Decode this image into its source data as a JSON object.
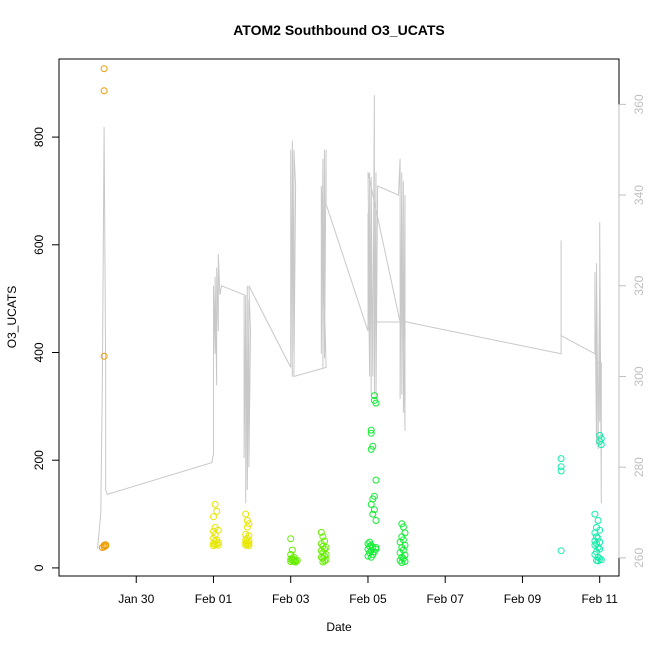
{
  "chart_data": {
    "type": "scatter",
    "title": "ATOM2 Southbound O3_UCATS",
    "xlabel": "Date",
    "ylabel": "O3_UCATS",
    "x_axis": {
      "type": "date",
      "range": [
        "2017-01-28",
        "2017-02-11 12:00"
      ],
      "ticks": [
        {
          "value": "2017-01-30",
          "label": "Jan 30"
        },
        {
          "value": "2017-02-01",
          "label": "Feb 01"
        },
        {
          "value": "2017-02-03",
          "label": "Feb 03"
        },
        {
          "value": "2017-02-05",
          "label": "Feb 05"
        },
        {
          "value": "2017-02-07",
          "label": "Feb 07"
        },
        {
          "value": "2017-02-09",
          "label": "Feb 09"
        },
        {
          "value": "2017-02-11",
          "label": "Feb 11"
        }
      ]
    },
    "y_axis_left": {
      "range": [
        -15,
        945
      ],
      "ticks": [
        0,
        200,
        400,
        600,
        800
      ]
    },
    "y_axis_right": {
      "range": [
        256,
        370
      ],
      "ticks": [
        260,
        280,
        300,
        320,
        340,
        360
      ],
      "color": "#bfbfbf"
    },
    "grid": false,
    "series": [
      {
        "color": "#ee9a00",
        "points": [
          [
            "2017-01-29 04:00",
            927
          ],
          [
            "2017-01-29 04:00",
            886
          ],
          [
            "2017-01-29 04:00",
            393
          ],
          [
            "2017-01-29 04:00",
            42
          ],
          [
            "2017-01-29 04:00",
            39
          ],
          [
            "2017-01-29 05:00",
            41
          ],
          [
            "2017-01-29 03:00",
            38
          ],
          [
            "2017-01-29 05:00",
            43
          ]
        ]
      },
      {
        "color": "#e6e600",
        "points": [
          [
            "2017-02-01 01:00",
            118
          ],
          [
            "2017-02-01 02:00",
            105
          ],
          [
            "2017-02-01 00:00",
            95
          ],
          [
            "2017-02-01 01:00",
            75
          ],
          [
            "2017-02-01 00:00",
            68
          ],
          [
            "2017-02-01 03:00",
            70
          ],
          [
            "2017-02-01 01:00",
            62
          ],
          [
            "2017-02-01 00:00",
            55
          ],
          [
            "2017-02-01 02:00",
            52
          ],
          [
            "2017-02-01 01:00",
            49
          ],
          [
            "2017-02-01 03:00",
            47
          ],
          [
            "2017-02-01 00:00",
            45
          ],
          [
            "2017-02-01 02:00",
            44
          ],
          [
            "2017-02-01 01:00",
            43
          ],
          [
            "2017-02-01 03:00",
            42
          ],
          [
            "2017-02-01 00:00",
            41
          ],
          [
            "2017-02-01 20:00",
            100
          ],
          [
            "2017-02-01 21:00",
            88
          ],
          [
            "2017-02-01 22:00",
            82
          ],
          [
            "2017-02-01 21:00",
            76
          ],
          [
            "2017-02-01 20:00",
            62
          ],
          [
            "2017-02-01 22:00",
            60
          ],
          [
            "2017-02-01 21:00",
            55
          ],
          [
            "2017-02-01 20:00",
            52
          ],
          [
            "2017-02-01 22:00",
            50
          ],
          [
            "2017-02-01 21:00",
            48
          ],
          [
            "2017-02-01 20:00",
            46
          ],
          [
            "2017-02-01 22:00",
            45
          ],
          [
            "2017-02-01 21:00",
            43
          ],
          [
            "2017-02-01 20:00",
            42
          ],
          [
            "2017-02-01 22:00",
            41
          ]
        ]
      },
      {
        "color": "#66ee00",
        "points": [
          [
            "2017-02-03 00:00",
            54
          ],
          [
            "2017-02-03 01:00",
            33
          ],
          [
            "2017-02-03 00:00",
            25
          ],
          [
            "2017-02-03 02:00",
            20
          ],
          [
            "2017-02-03 01:00",
            18
          ],
          [
            "2017-02-03 00:00",
            16
          ],
          [
            "2017-02-03 02:00",
            15
          ],
          [
            "2017-02-03 01:00",
            14
          ],
          [
            "2017-02-03 03:00",
            13
          ],
          [
            "2017-02-03 00:00",
            12
          ],
          [
            "2017-02-03 02:00",
            12
          ],
          [
            "2017-02-03 03:00",
            11
          ],
          [
            "2017-02-03 04:00",
            14
          ],
          [
            "2017-02-03 19:00",
            66
          ],
          [
            "2017-02-03 20:00",
            58
          ],
          [
            "2017-02-03 21:00",
            50
          ],
          [
            "2017-02-03 19:00",
            45
          ],
          [
            "2017-02-03 20:00",
            40
          ],
          [
            "2017-02-03 22:00",
            38
          ],
          [
            "2017-02-03 21:00",
            35
          ],
          [
            "2017-02-03 19:00",
            32
          ],
          [
            "2017-02-03 20:00",
            28
          ],
          [
            "2017-02-03 22:00",
            25
          ],
          [
            "2017-02-03 21:00",
            22
          ],
          [
            "2017-02-03 19:00",
            20
          ],
          [
            "2017-02-03 20:00",
            18
          ],
          [
            "2017-02-03 22:00",
            15
          ],
          [
            "2017-02-03 21:00",
            13
          ],
          [
            "2017-02-03 20:00",
            11
          ]
        ]
      },
      {
        "color": "#11ee33",
        "points": [
          [
            "2017-02-05 04:00",
            320
          ],
          [
            "2017-02-05 04:00",
            311
          ],
          [
            "2017-02-05 05:00",
            306
          ],
          [
            "2017-02-05 02:00",
            256
          ],
          [
            "2017-02-05 02:00",
            250
          ],
          [
            "2017-02-05 03:00",
            226
          ],
          [
            "2017-02-05 02:00",
            220
          ],
          [
            "2017-02-05 05:00",
            163
          ],
          [
            "2017-02-05 04:00",
            133
          ],
          [
            "2017-02-05 03:00",
            128
          ],
          [
            "2017-02-05 02:00",
            118
          ],
          [
            "2017-02-05 04:00",
            108
          ],
          [
            "2017-02-05 03:00",
            100
          ],
          [
            "2017-02-05 05:00",
            88
          ],
          [
            "2017-02-05 01:00",
            48
          ],
          [
            "2017-02-05 00:00",
            45
          ],
          [
            "2017-02-05 02:00",
            42
          ],
          [
            "2017-02-05 01:00",
            40
          ],
          [
            "2017-02-05 03:00",
            38
          ],
          [
            "2017-02-05 00:00",
            35
          ],
          [
            "2017-02-05 02:00",
            32
          ],
          [
            "2017-02-05 04:00",
            30
          ],
          [
            "2017-02-05 01:00",
            28
          ],
          [
            "2017-02-05 03:00",
            25
          ],
          [
            "2017-02-05 00:00",
            22
          ],
          [
            "2017-02-05 02:00",
            20
          ],
          [
            "2017-02-05 05:00",
            38
          ],
          [
            "2017-02-05 05:00",
            35
          ],
          [
            "2017-02-05 21:00",
            82
          ],
          [
            "2017-02-05 22:00",
            76
          ],
          [
            "2017-02-05 23:00",
            65
          ],
          [
            "2017-02-05 21:00",
            58
          ],
          [
            "2017-02-05 22:00",
            52
          ],
          [
            "2017-02-05 20:00",
            48
          ],
          [
            "2017-02-05 23:00",
            42
          ],
          [
            "2017-02-05 21:00",
            38
          ],
          [
            "2017-02-05 22:00",
            33
          ],
          [
            "2017-02-05 20:00",
            28
          ],
          [
            "2017-02-05 23:00",
            24
          ],
          [
            "2017-02-05 21:00",
            20
          ],
          [
            "2017-02-05 22:00",
            17
          ],
          [
            "2017-02-05 20:00",
            14
          ],
          [
            "2017-02-05 23:00",
            12
          ],
          [
            "2017-02-05 21:00",
            10
          ]
        ]
      },
      {
        "color": "#11eeaa",
        "points": [
          [
            "2017-02-10 00:00",
            203
          ],
          [
            "2017-02-10 00:00",
            188
          ],
          [
            "2017-02-10 00:00",
            180
          ],
          [
            "2017-02-10 00:00",
            32
          ],
          [
            "2017-02-11 00:00",
            246
          ],
          [
            "2017-02-11 01:00",
            240
          ],
          [
            "2017-02-11 00:00",
            235
          ],
          [
            "2017-02-11 01:00",
            229
          ],
          [
            "2017-02-10 21:00",
            100
          ],
          [
            "2017-02-10 23:00",
            88
          ],
          [
            "2017-02-10 22:00",
            75
          ],
          [
            "2017-02-11 00:00",
            70
          ],
          [
            "2017-02-10 21:00",
            65
          ],
          [
            "2017-02-10 22:00",
            58
          ],
          [
            "2017-02-10 23:00",
            55
          ],
          [
            "2017-02-10 21:00",
            50
          ],
          [
            "2017-02-11 00:00",
            48
          ],
          [
            "2017-02-10 22:00",
            45
          ],
          [
            "2017-02-10 21:00",
            42
          ],
          [
            "2017-02-10 23:00",
            38
          ],
          [
            "2017-02-11 00:00",
            35
          ],
          [
            "2017-02-10 22:00",
            30
          ],
          [
            "2017-02-10 21:00",
            25
          ],
          [
            "2017-02-10 23:00",
            20
          ],
          [
            "2017-02-11 00:00",
            17
          ],
          [
            "2017-02-11 01:00",
            15
          ],
          [
            "2017-02-10 22:00",
            14
          ],
          [
            "2017-02-10 23:00",
            13
          ]
        ]
      }
    ],
    "track": {
      "axis": "right",
      "color": "#c8c8c8",
      "points": [
        [
          "2017-01-29 00:00",
          262
        ],
        [
          "2017-01-29 02:00",
          270
        ],
        [
          "2017-01-29 03:00",
          300
        ],
        [
          "2017-01-29 04:00",
          355
        ],
        [
          "2017-01-29 05:00",
          300
        ],
        [
          "2017-01-29 05:00",
          275
        ],
        [
          "2017-01-29 06:00",
          274
        ],
        [
          "2017-01-31 23:00",
          281
        ],
        [
          "2017-02-01 00:00",
          283
        ],
        [
          "2017-02-01 00:00",
          320
        ],
        [
          "2017-02-01 01:00",
          305
        ],
        [
          "2017-02-01 01:00",
          322
        ],
        [
          "2017-02-01 02:00",
          298
        ],
        [
          "2017-02-01 02:00",
          324
        ],
        [
          "2017-02-01 03:00",
          310
        ],
        [
          "2017-02-01 03:00",
          327
        ],
        [
          "2017-02-01 04:00",
          318
        ],
        [
          "2017-02-01 05:00",
          320
        ],
        [
          "2017-02-01 19:00",
          318
        ],
        [
          "2017-02-01 19:00",
          282
        ],
        [
          "2017-02-01 20:00",
          318
        ],
        [
          "2017-02-01 20:00",
          272
        ],
        [
          "2017-02-01 21:00",
          320
        ],
        [
          "2017-02-01 21:00",
          275
        ],
        [
          "2017-02-01 22:00",
          317
        ],
        [
          "2017-02-01 22:00",
          280
        ],
        [
          "2017-02-01 23:00",
          310
        ],
        [
          "2017-02-01 22:00",
          320
        ],
        [
          "2017-02-03 00:00",
          302
        ],
        [
          "2017-02-03 00:00",
          350
        ],
        [
          "2017-02-03 01:00",
          300
        ],
        [
          "2017-02-03 01:00",
          352
        ],
        [
          "2017-02-03 02:00",
          305
        ],
        [
          "2017-02-03 02:00",
          350
        ],
        [
          "2017-02-03 03:00",
          342
        ],
        [
          "2017-02-03 02:00",
          300
        ],
        [
          "2017-02-03 22:00",
          302
        ],
        [
          "2017-02-03 19:00",
          342
        ],
        [
          "2017-02-03 19:00",
          305
        ],
        [
          "2017-02-03 20:00",
          348
        ],
        [
          "2017-02-03 20:00",
          302
        ],
        [
          "2017-02-03 21:00",
          350
        ],
        [
          "2017-02-03 21:00",
          304
        ],
        [
          "2017-02-03 22:00",
          350
        ],
        [
          "2017-02-03 22:00",
          338
        ],
        [
          "2017-02-05 00:00",
          310
        ],
        [
          "2017-02-05 00:00",
          336
        ],
        [
          "2017-02-05 01:00",
          300
        ],
        [
          "2017-02-05 01:00",
          345
        ],
        [
          "2017-02-05 02:00",
          296
        ],
        [
          "2017-02-05 02:00",
          344
        ],
        [
          "2017-02-05 03:00",
          300
        ],
        [
          "2017-02-05 04:00",
          362
        ],
        [
          "2017-02-05 04:00",
          296
        ],
        [
          "2017-02-05 05:00",
          345
        ],
        [
          "2017-02-05 05:00",
          295
        ],
        [
          "2017-02-05 06:00",
          342
        ],
        [
          "2017-02-05 19:00",
          340
        ],
        [
          "2017-02-05 20:00",
          348
        ],
        [
          "2017-02-05 20:00",
          295
        ],
        [
          "2017-02-05 21:00",
          345
        ],
        [
          "2017-02-05 21:00",
          296
        ],
        [
          "2017-02-05 22:00",
          343
        ],
        [
          "2017-02-05 22:00",
          292
        ],
        [
          "2017-02-05 23:00",
          340
        ],
        [
          "2017-02-05 23:00",
          288
        ],
        [
          "2017-02-05 22:00",
          312
        ],
        [
          "2017-02-05 01:00",
          312
        ],
        [
          "2017-02-05 00:00",
          345
        ],
        [
          "2017-02-05 20:00",
          312
        ],
        [
          "2017-02-06 00:00",
          312
        ],
        [
          "2017-02-10 00:00",
          305
        ],
        [
          "2017-02-10 00:00",
          330
        ],
        [
          "2017-02-10 00:00",
          309
        ],
        [
          "2017-02-10 21:00",
          305
        ],
        [
          "2017-02-10 21:00",
          323
        ],
        [
          "2017-02-10 22:00",
          285
        ],
        [
          "2017-02-10 22:00",
          325
        ],
        [
          "2017-02-10 23:00",
          284
        ],
        [
          "2017-02-11 00:00",
          322
        ],
        [
          "2017-02-11 00:00",
          290
        ],
        [
          "2017-02-11 00:00",
          334
        ],
        [
          "2017-02-11 01:00",
          272
        ],
        [
          "2017-02-11 01:00",
          303
        ],
        [
          "2017-02-10 21:00",
          303
        ]
      ]
    }
  }
}
